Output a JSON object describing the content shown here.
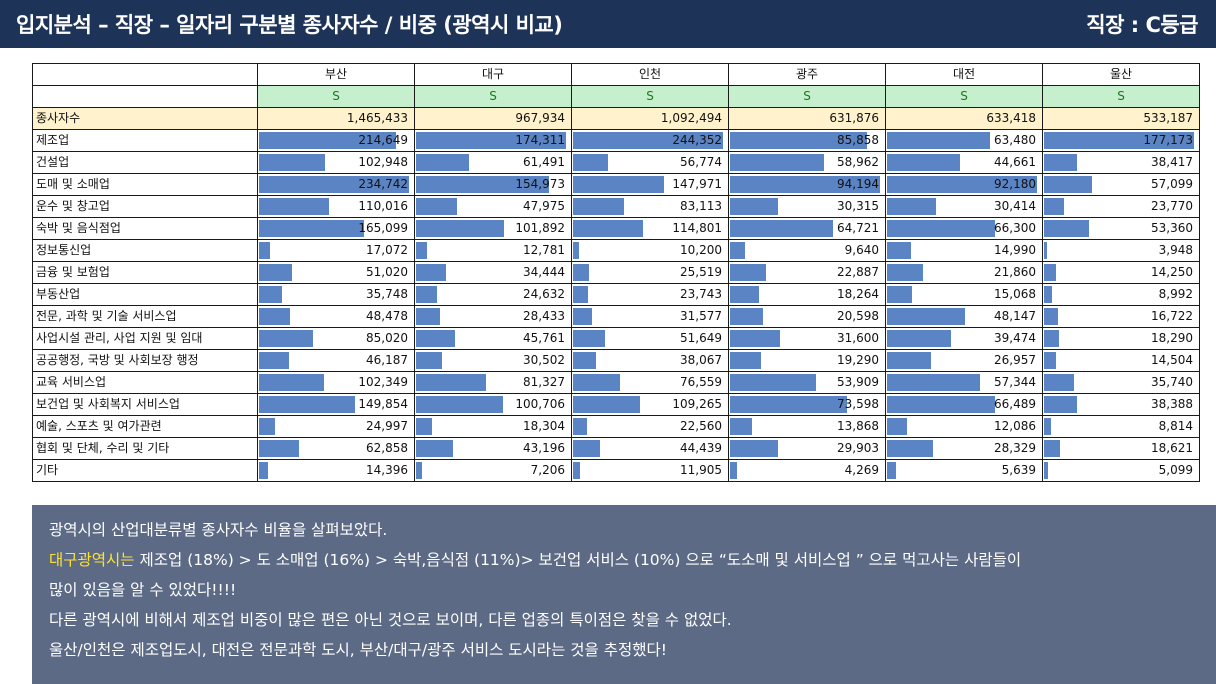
{
  "header": {
    "title": "입지분석 – 직장 – 일자리 구분별 종사자수 / 비중 (광역시 비교)",
    "grade": "직장 : C등급"
  },
  "table": {
    "cities": [
      "부산",
      "대구",
      "인천",
      "광주",
      "대전",
      "울산"
    ],
    "grades": [
      "S",
      "S",
      "S",
      "S",
      "S",
      "S"
    ],
    "total": {
      "label": "종사자수",
      "values": [
        "1,465,433",
        "967,934",
        "1,092,494",
        "631,876",
        "633,418",
        "533,187"
      ]
    },
    "rows": [
      {
        "label": "제조업",
        "values": [
          "214,649",
          "174,311",
          "244,352",
          "85,858",
          "63,480",
          "177,173"
        ],
        "nums": [
          214649,
          174311,
          244352,
          85858,
          63480,
          177173
        ]
      },
      {
        "label": "건설업",
        "values": [
          "102,948",
          "61,491",
          "56,774",
          "58,962",
          "44,661",
          "38,417"
        ],
        "nums": [
          102948,
          61491,
          56774,
          58962,
          44661,
          38417
        ]
      },
      {
        "label": "도매 및 소매업",
        "values": [
          "234,742",
          "154,973",
          "147,971",
          "94,194",
          "92,180",
          "57,099"
        ],
        "nums": [
          234742,
          154973,
          147971,
          94194,
          92180,
          57099
        ]
      },
      {
        "label": "운수 및 창고업",
        "values": [
          "110,016",
          "47,975",
          "83,113",
          "30,315",
          "30,414",
          "23,770"
        ],
        "nums": [
          110016,
          47975,
          83113,
          30315,
          30414,
          23770
        ]
      },
      {
        "label": "숙박 및 음식점업",
        "values": [
          "165,099",
          "101,892",
          "114,801",
          "64,721",
          "66,300",
          "53,360"
        ],
        "nums": [
          165099,
          101892,
          114801,
          64721,
          66300,
          53360
        ]
      },
      {
        "label": "정보통신업",
        "values": [
          "17,072",
          "12,781",
          "10,200",
          "9,640",
          "14,990",
          "3,948"
        ],
        "nums": [
          17072,
          12781,
          10200,
          9640,
          14990,
          3948
        ]
      },
      {
        "label": "금융 및 보험업",
        "values": [
          "51,020",
          "34,444",
          "25,519",
          "22,887",
          "21,860",
          "14,250"
        ],
        "nums": [
          51020,
          34444,
          25519,
          22887,
          21860,
          14250
        ]
      },
      {
        "label": "부동산업",
        "values": [
          "35,748",
          "24,632",
          "23,743",
          "18,264",
          "15,068",
          "8,992"
        ],
        "nums": [
          35748,
          24632,
          23743,
          18264,
          15068,
          8992
        ]
      },
      {
        "label": "전문, 과학 및 기술 서비스업",
        "values": [
          "48,478",
          "28,433",
          "31,577",
          "20,598",
          "48,147",
          "16,722"
        ],
        "nums": [
          48478,
          28433,
          31577,
          20598,
          48147,
          16722
        ]
      },
      {
        "label": "사업시설 관리, 사업 지원 및 임대",
        "values": [
          "85,020",
          "45,761",
          "51,649",
          "31,600",
          "39,474",
          "18,290"
        ],
        "nums": [
          85020,
          45761,
          51649,
          31600,
          39474,
          18290
        ]
      },
      {
        "label": "공공행정, 국방 및 사회보장 행정",
        "values": [
          "46,187",
          "30,502",
          "38,067",
          "19,290",
          "26,957",
          "14,504"
        ],
        "nums": [
          46187,
          30502,
          38067,
          19290,
          26957,
          14504
        ]
      },
      {
        "label": "교육 서비스업",
        "values": [
          "102,349",
          "81,327",
          "76,559",
          "53,909",
          "57,344",
          "35,740"
        ],
        "nums": [
          102349,
          81327,
          76559,
          53909,
          57344,
          35740
        ]
      },
      {
        "label": "보건업 및 사회복지 서비스업",
        "values": [
          "149,854",
          "100,706",
          "109,265",
          "73,598",
          "66,489",
          "38,388"
        ],
        "nums": [
          149854,
          100706,
          109265,
          73598,
          66489,
          38388
        ]
      },
      {
        "label": "예술, 스포츠 및 여가관련",
        "values": [
          "24,997",
          "18,304",
          "22,560",
          "13,868",
          "12,086",
          "8,814"
        ],
        "nums": [
          24997,
          18304,
          22560,
          13868,
          12086,
          8814
        ]
      },
      {
        "label": "협회 및 단체, 수리 및 기타",
        "values": [
          "62,858",
          "43,196",
          "44,439",
          "29,903",
          "28,329",
          "18,621"
        ],
        "nums": [
          62858,
          43196,
          44439,
          29903,
          28329,
          18621
        ]
      },
      {
        "label": "기타",
        "values": [
          "14,396",
          "7,206",
          "11,905",
          "4,269",
          "5,639",
          "5,099"
        ],
        "nums": [
          14396,
          7206,
          11905,
          4269,
          5639,
          5099
        ]
      }
    ],
    "bar_color": "#5b84c4"
  },
  "note": {
    "line1": "광역시의  산업대분류별 종사자수 비율을 살펴보았다.",
    "line2_highlight": "대구광역시는",
    "line2_rest": " 제조업 (18%) > 도 소매업 (16%) > 숙박,음식점 (11%)> 보건업 서비스 (10%) 으로 “도소매 및 서비스업 ” 으로 먹고사는 사람들이",
    "line3": "많이 있음을 알 수 있었다!!!!",
    "line4": "다른 광역시에 비해서 제조업 비중이 많은 편은 아닌 것으로 보이며, 다른 업종의 특이점은 찾을 수 없었다.",
    "line5": "울산/인천은 제조업도시, 대전은 전문과학 도시, 부산/대구/광주 서비스 도시라는 것을 추정했다!",
    "highlight_color": "#ffe135"
  }
}
